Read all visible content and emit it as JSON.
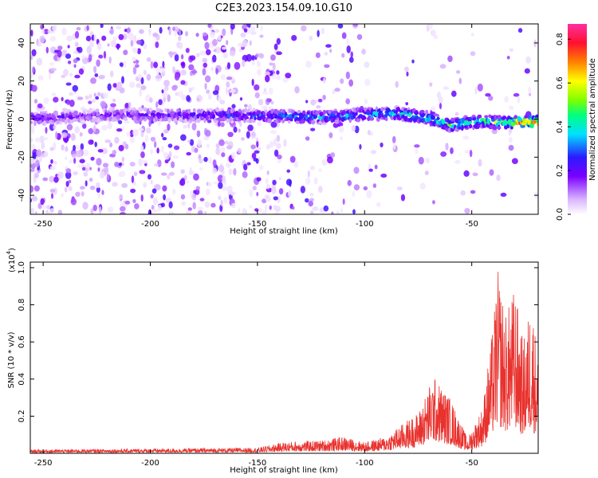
{
  "title": "C2E3.2023.154.09.10.G10",
  "chart_data": [
    {
      "type": "heatmap",
      "xlabel": "Height of straight line (km)",
      "ylabel": "Frequency (Hz)",
      "xlim": [
        -256,
        -19
      ],
      "ylim": [
        -50,
        50
      ],
      "xticks": [
        -250,
        -200,
        -150,
        -100,
        -50
      ],
      "yticks": [
        -40,
        -20,
        0,
        20,
        40
      ],
      "colorbar": {
        "label": "Normalized spectral amplitude",
        "range": [
          0,
          0.87
        ],
        "ticks": [
          0.0,
          0.2,
          0.4,
          0.6,
          0.8
        ],
        "colormap": "white-purple-blue-cyan-green-yellow-red-magenta"
      },
      "ridge_profile": [
        {
          "x": -252,
          "y": 0.5,
          "amplitude": 0.25
        },
        {
          "x": -230,
          "y": 1.5,
          "amplitude": 0.18
        },
        {
          "x": -215,
          "y": 2.5,
          "amplitude": 0.22
        },
        {
          "x": -190,
          "y": 2.0,
          "amplitude": 0.24
        },
        {
          "x": -165,
          "y": 2.0,
          "amplitude": 0.28
        },
        {
          "x": -140,
          "y": 1.5,
          "amplitude": 0.34
        },
        {
          "x": -120,
          "y": 1.0,
          "amplitude": 0.38
        },
        {
          "x": -100,
          "y": 2.5,
          "amplitude": 0.4
        },
        {
          "x": -85,
          "y": 3.0,
          "amplitude": 0.44
        },
        {
          "x": -70,
          "y": 0.5,
          "amplitude": 0.48
        },
        {
          "x": -60,
          "y": -3.0,
          "amplitude": 0.52
        },
        {
          "x": -45,
          "y": -1.0,
          "amplitude": 0.55
        },
        {
          "x": -35,
          "y": -2.0,
          "amplitude": 0.6
        },
        {
          "x": -25,
          "y": -1.5,
          "amplitude": 0.87
        }
      ]
    },
    {
      "type": "line",
      "xlabel": "Height of straight line (km)",
      "ylabel": "SNR (10 * v/v)",
      "y_scale_label": "(x10",
      "y_scale_exponent": "4",
      "xlim": [
        -256,
        -19
      ],
      "ylim": [
        0,
        1.03
      ],
      "xticks": [
        -250,
        -200,
        -150,
        -100,
        -50
      ],
      "yticks": [
        0.2,
        0.4,
        0.6,
        0.8,
        1.0
      ],
      "color": "#e8322e",
      "envelope": [
        {
          "x": -256,
          "y": 0.02
        },
        {
          "x": -200,
          "y": 0.025
        },
        {
          "x": -150,
          "y": 0.03
        },
        {
          "x": -138,
          "y": 0.06
        },
        {
          "x": -120,
          "y": 0.07
        },
        {
          "x": -110,
          "y": 0.09
        },
        {
          "x": -100,
          "y": 0.06
        },
        {
          "x": -90,
          "y": 0.09
        },
        {
          "x": -80,
          "y": 0.18
        },
        {
          "x": -75,
          "y": 0.22
        },
        {
          "x": -68,
          "y": 0.42
        },
        {
          "x": -60,
          "y": 0.3
        },
        {
          "x": -52,
          "y": 0.08
        },
        {
          "x": -45,
          "y": 0.25
        },
        {
          "x": -40,
          "y": 0.7
        },
        {
          "x": -38,
          "y": 1.0
        },
        {
          "x": -34,
          "y": 0.75
        },
        {
          "x": -30,
          "y": 0.9
        },
        {
          "x": -26,
          "y": 0.6
        },
        {
          "x": -22,
          "y": 0.85
        },
        {
          "x": -19,
          "y": 0.5
        }
      ]
    }
  ]
}
